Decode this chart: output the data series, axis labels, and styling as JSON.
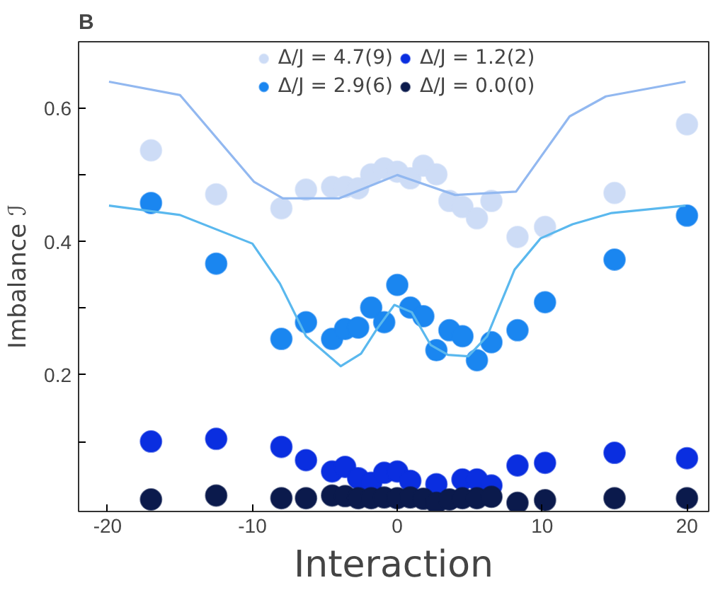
{
  "chart_data": {
    "type": "scatter",
    "title": "B",
    "xlabel": "Interaction",
    "ylabel": "Imbalance ℐ",
    "xlim": [
      -22,
      21.5
    ],
    "ylim": [
      -0.005,
      0.7
    ],
    "xticks": [
      -20,
      -10,
      0,
      10,
      20
    ],
    "yticks": [
      {
        "value": 0.1,
        "label": null
      },
      0.2,
      {
        "value": 0.3,
        "label": null
      },
      0.4,
      {
        "value": 0.5,
        "label": null
      },
      0.6
    ],
    "x": [
      -17,
      -12.5,
      -8,
      -6.3,
      -4.5,
      -3.6,
      -2.7,
      -1.8,
      -0.9,
      0,
      0.9,
      1.8,
      2.7,
      3.6,
      4.5,
      5.5,
      6.5,
      8.3,
      10.2,
      15,
      20
    ],
    "marker": "circle",
    "grid": false,
    "legend": "top",
    "series": [
      {
        "name": "Δ/J = 4.7(9)",
        "color": "#cddcf6",
        "values": [
          0.537,
          0.471,
          0.45,
          0.478,
          0.482,
          0.482,
          0.48,
          0.501,
          0.51,
          0.505,
          0.495,
          0.514,
          0.501,
          0.461,
          0.452,
          0.435,
          0.461,
          0.407,
          0.422,
          0.473,
          0.576
        ]
      },
      {
        "name": "Δ/J = 2.9(6)",
        "color": "#1a86f0",
        "values": [
          0.458,
          0.367,
          0.254,
          0.279,
          0.254,
          0.269,
          0.271,
          0.301,
          0.279,
          0.335,
          0.301,
          0.288,
          0.237,
          0.267,
          0.258,
          0.222,
          0.249,
          0.267,
          0.309,
          0.373,
          0.439
        ]
      },
      {
        "name": "Δ/J = 1.2(2)",
        "color": "#0a2ee0",
        "values": [
          0.1,
          0.104,
          0.092,
          0.072,
          0.055,
          0.062,
          0.045,
          0.038,
          0.053,
          0.055,
          0.041,
          null,
          0.036,
          null,
          0.043,
          0.043,
          0.034,
          0.064,
          0.068,
          0.083,
          0.075
        ]
      },
      {
        "name": "Δ/J = 0.0(0)",
        "color": "#0b1a4c",
        "values": [
          0.013,
          0.019,
          0.015,
          0.015,
          0.019,
          0.018,
          0.015,
          0.015,
          0.016,
          0.015,
          0.016,
          0.014,
          0.008,
          0.013,
          0.015,
          0.015,
          0.017,
          0.008,
          0.012,
          0.015,
          0.015
        ]
      },
      {
        "type": "line",
        "marker": "none",
        "color": "#92b8f0",
        "x": [
          -19.9,
          -15,
          -9.9,
          -7.9,
          -4,
          0,
          4,
          8.2,
          11.9,
          14.4,
          19.9
        ],
        "values": [
          0.64,
          0.62,
          0.49,
          0.465,
          0.465,
          0.5,
          0.47,
          0.475,
          0.588,
          0.618,
          0.64
        ]
      },
      {
        "type": "line",
        "marker": "none",
        "color": "#5ab8ee",
        "x": [
          -19.9,
          -15,
          -10,
          -8.1,
          -6.3,
          -3.9,
          -2.5,
          -1.4,
          -0.2,
          1,
          2.3,
          3.5,
          4.9,
          6.2,
          8.1,
          9.9,
          12.1,
          14.8,
          19.9
        ],
        "values": [
          0.454,
          0.44,
          0.397,
          0.337,
          0.258,
          0.213,
          0.232,
          0.269,
          0.305,
          0.294,
          0.245,
          0.23,
          0.228,
          0.258,
          0.358,
          0.405,
          0.426,
          0.443,
          0.454
        ]
      }
    ]
  }
}
